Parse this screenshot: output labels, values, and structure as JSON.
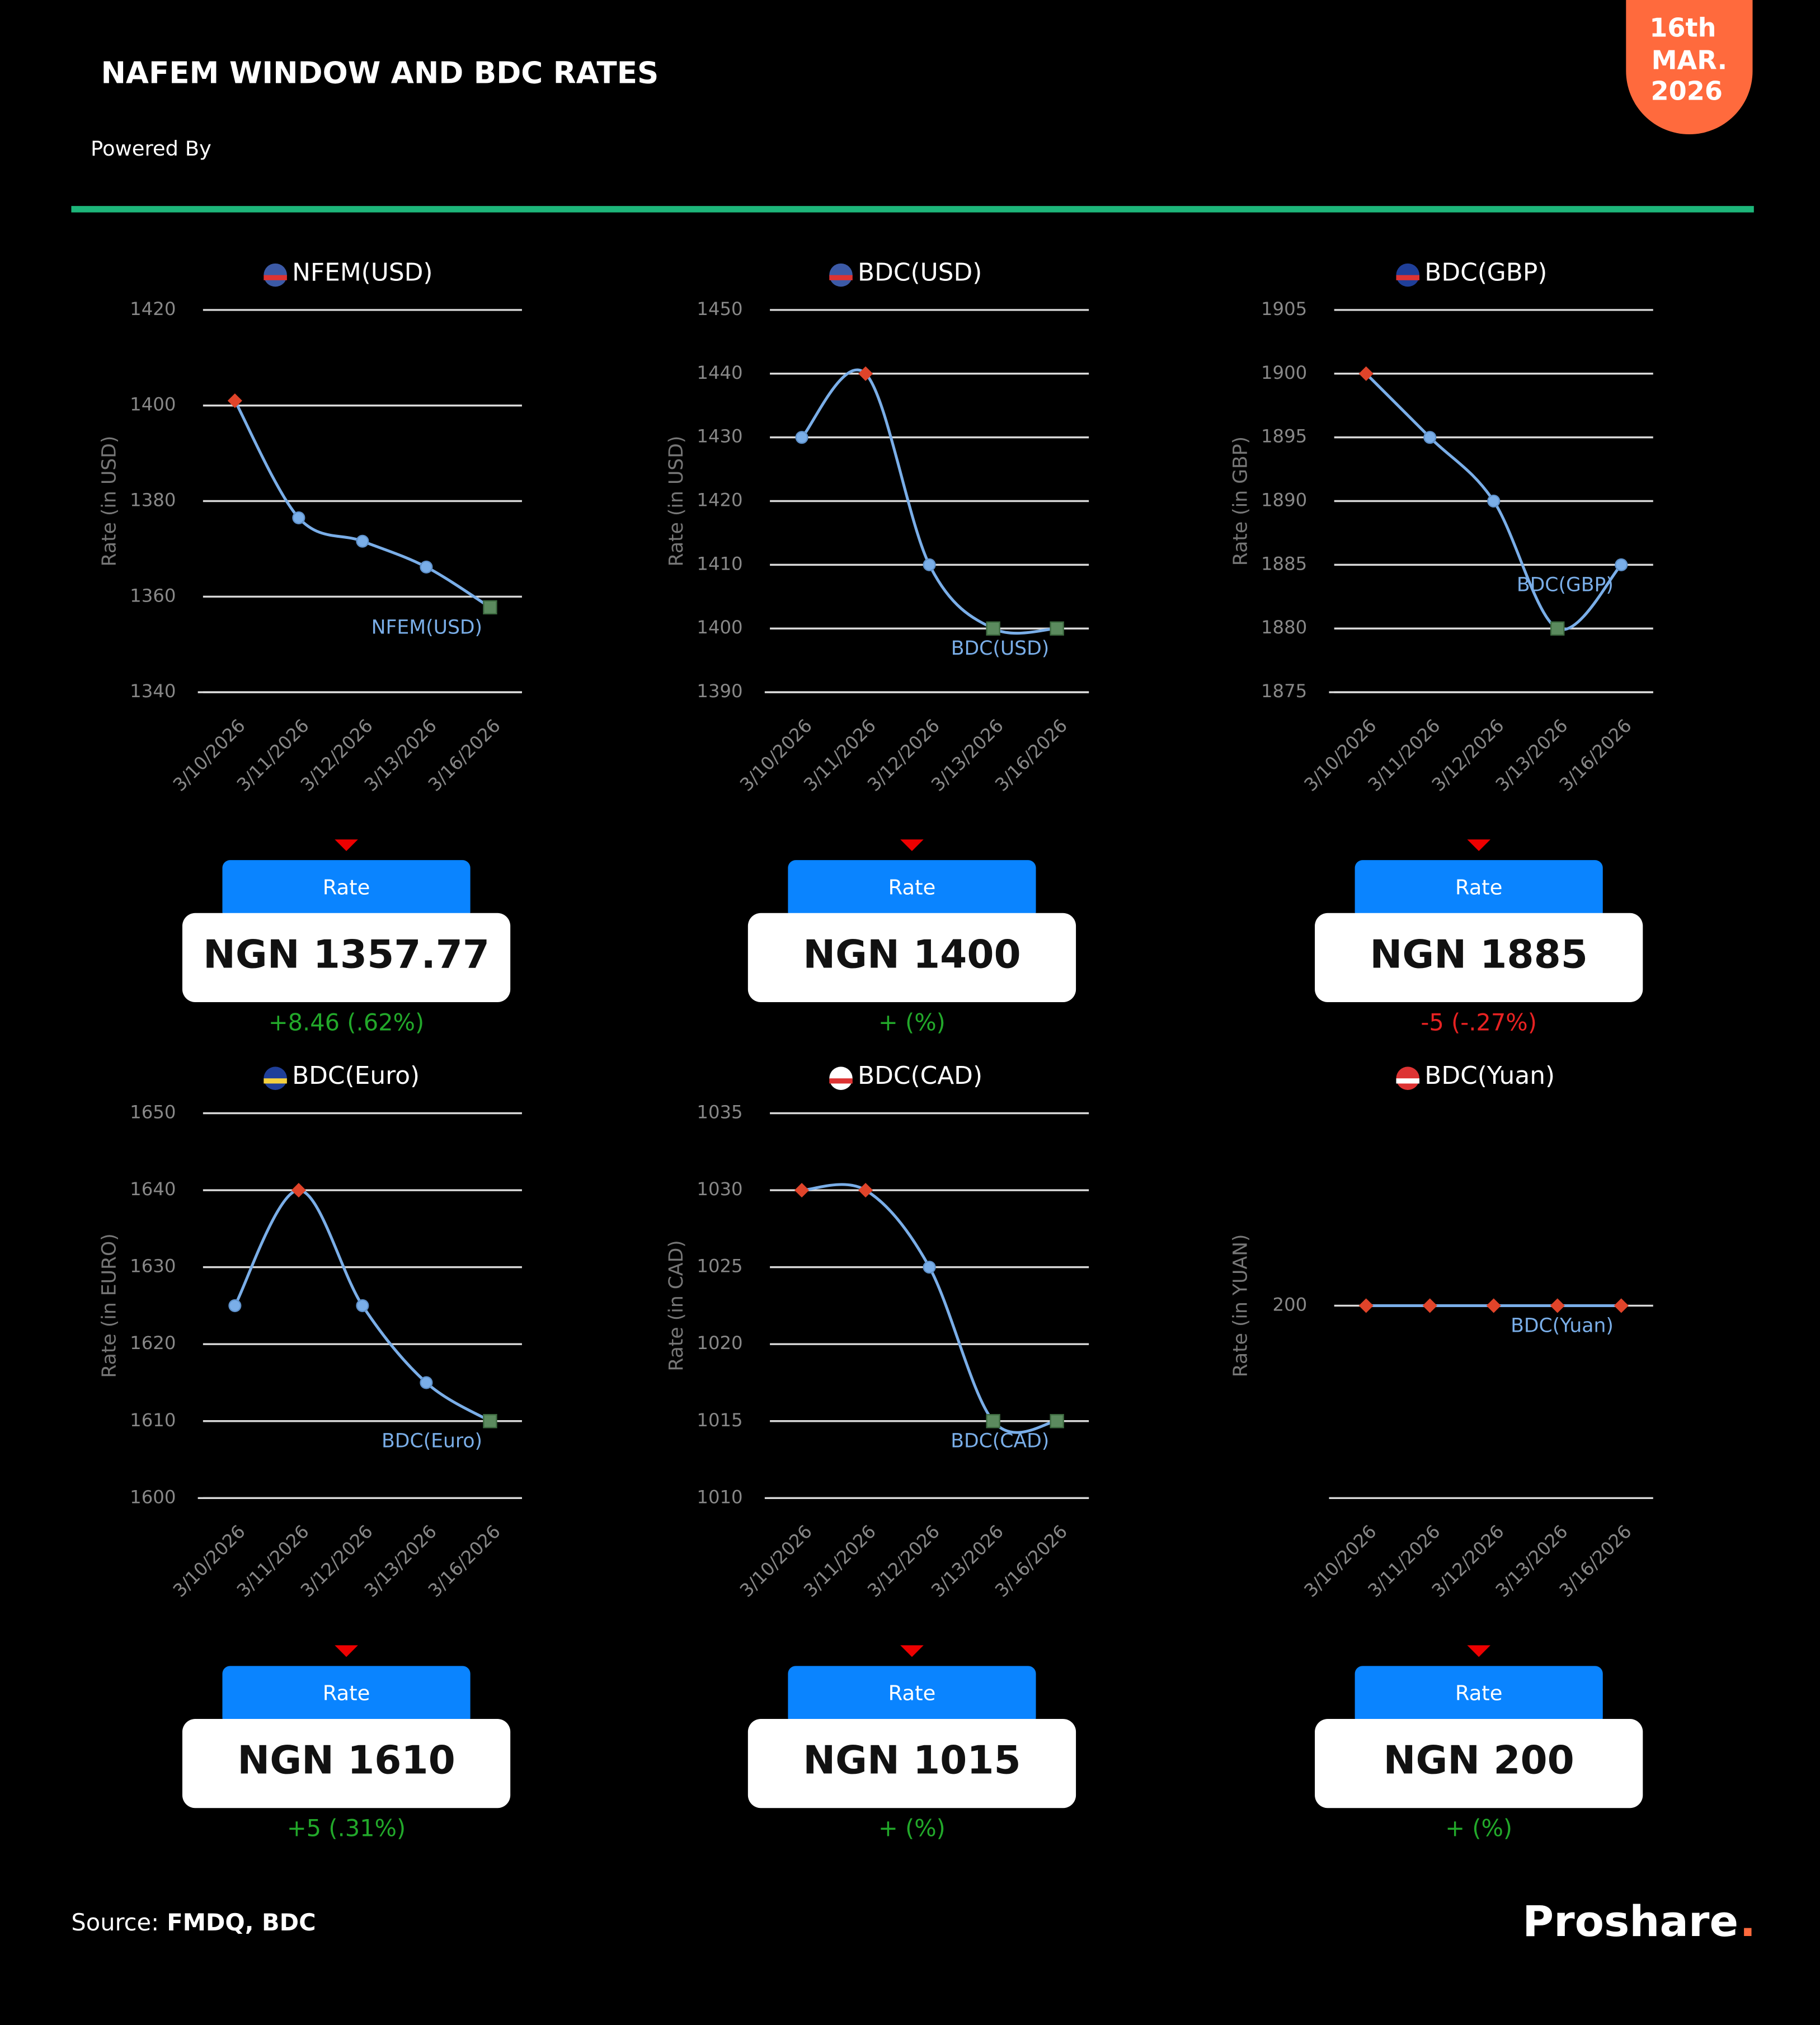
{
  "header": {
    "title": "NAFEM WINDOW AND BDC RATES",
    "powered_by": "Powered By",
    "date": [
      "16th",
      "MAR.",
      "2026"
    ]
  },
  "footer": {
    "source_label": "Source:",
    "source": "FMDQ, BDC",
    "brand": "Proshare",
    "brand_dot": "."
  },
  "chart_data": [
    {
      "type": "line",
      "title": "NFEM(USD)",
      "y_label": "Rate (in USD)",
      "categories": [
        "3/10/2026",
        "3/11/2026",
        "3/12/2026",
        "3/13/2026",
        "3/16/2026"
      ],
      "series": [
        {
          "name": "NFEM(USD)",
          "color": "#7aaee8",
          "values": [
            1401,
            1376.5,
            1371.6,
            1366.2,
            1357.77
          ]
        }
      ],
      "ylim": [
        1340,
        1420
      ],
      "yticks": [
        1340,
        1360,
        1380,
        1400,
        1420
      ],
      "grid": true,
      "rate_label": "Rate",
      "rate": "NGN 1357.77",
      "change": "+8.46 (.62%)",
      "change_color": "#22a82a"
    },
    {
      "type": "line",
      "title": "BDC(USD)",
      "y_label": "Rate (in USD)",
      "categories": [
        "3/10/2026",
        "3/11/2026",
        "3/12/2026",
        "3/13/2026",
        "3/16/2026"
      ],
      "series": [
        {
          "name": "BDC(USD)",
          "color": "#7aaee8",
          "values": [
            1430,
            1440,
            1410,
            1400,
            1400
          ]
        }
      ],
      "ylim": [
        1390,
        1450
      ],
      "yticks": [
        1390,
        1400,
        1410,
        1420,
        1430,
        1440,
        1450
      ],
      "grid": true,
      "rate_label": "Rate",
      "rate": "NGN 1400",
      "change": "+ (%)",
      "change_color": "#22a82a"
    },
    {
      "type": "line",
      "title": "BDC(GBP)",
      "y_label": "Rate (in GBP)",
      "categories": [
        "3/10/2026",
        "3/11/2026",
        "3/12/2026",
        "3/13/2026",
        "3/16/2026"
      ],
      "series": [
        {
          "name": "BDC(GBP)",
          "color": "#7aaee8",
          "values": [
            1900,
            1895,
            1890,
            1880,
            1885
          ]
        }
      ],
      "ylim": [
        1875,
        1905
      ],
      "yticks": [
        1875,
        1880,
        1885,
        1890,
        1895,
        1900,
        1905
      ],
      "grid": true,
      "rate_label": "Rate",
      "rate": "NGN 1885",
      "change": "-5 (-.27%)",
      "change_color": "#e82222"
    },
    {
      "type": "line",
      "title": "BDC(Euro)",
      "y_label": "Rate (in EURO)",
      "categories": [
        "3/10/2026",
        "3/11/2026",
        "3/12/2026",
        "3/13/2026",
        "3/16/2026"
      ],
      "series": [
        {
          "name": "BDC(Euro)",
          "color": "#7aaee8",
          "values": [
            1625,
            1640,
            1625,
            1615,
            1610
          ]
        }
      ],
      "ylim": [
        1600,
        1650
      ],
      "yticks": [
        1600,
        1610,
        1620,
        1630,
        1640,
        1650
      ],
      "grid": true,
      "rate_label": "Rate",
      "rate": "NGN 1610",
      "change": "+5 (.31%)",
      "change_color": "#22a82a"
    },
    {
      "type": "line",
      "title": "BDC(CAD)",
      "y_label": "Rate (in CAD)",
      "categories": [
        "3/10/2026",
        "3/11/2026",
        "3/12/2026",
        "3/13/2026",
        "3/16/2026"
      ],
      "series": [
        {
          "name": "BDC(CAD)",
          "color": "#7aaee8",
          "values": [
            1030,
            1030,
            1025,
            1015,
            1015
          ]
        }
      ],
      "ylim": [
        1010,
        1035
      ],
      "yticks": [
        1010,
        1015,
        1020,
        1025,
        1030,
        1035
      ],
      "grid": true,
      "rate_label": "Rate",
      "rate": "NGN 1015",
      "change": "+ (%)",
      "change_color": "#22a82a"
    },
    {
      "type": "line",
      "title": "BDC(Yuan)",
      "y_label": "Rate (in YUAN)",
      "categories": [
        "3/10/2026",
        "3/11/2026",
        "3/12/2026",
        "3/13/2026",
        "3/16/2026"
      ],
      "series": [
        {
          "name": "BDC(Yuan)",
          "color": "#7aaee8",
          "values": [
            200,
            200,
            200,
            200,
            200
          ]
        }
      ],
      "ylim": [
        0,
        400
      ],
      "yticks": [
        200
      ],
      "grid": true,
      "rate_label": "Rate",
      "rate": "NGN 200",
      "change": "+ (%)",
      "change_color": "#22a82a"
    }
  ]
}
